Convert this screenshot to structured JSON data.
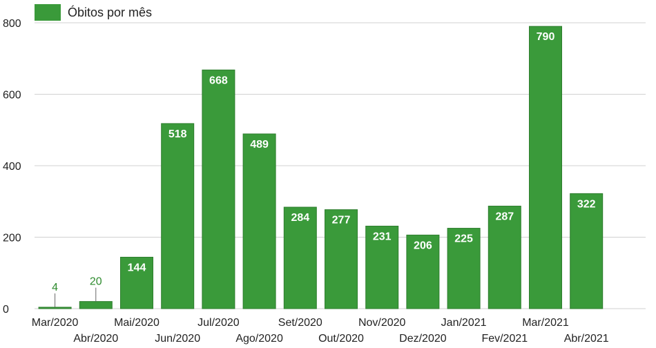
{
  "chart_data": {
    "type": "bar",
    "legend": {
      "label": "Óbitos por mês",
      "position": "top-left"
    },
    "categories": [
      "Mar/2020",
      "Abr/2020",
      "Mai/2020",
      "Jun/2020",
      "Jul/2020",
      "Ago/2020",
      "Set/2020",
      "Out/2020",
      "Nov/2020",
      "Dez/2020",
      "Jan/2021",
      "Fev/2021",
      "Mar/2021",
      "Abr/2021"
    ],
    "series": [
      {
        "name": "Óbitos por mês",
        "values": [
          4,
          20,
          144,
          518,
          668,
          489,
          284,
          277,
          231,
          206,
          225,
          287,
          790,
          322
        ]
      }
    ],
    "ylim": [
      0,
      800
    ],
    "yticks": [
      "0",
      "200",
      "400",
      "600",
      "800"
    ],
    "grid": true,
    "colors": {
      "bar": "#3a9a3a",
      "bar_stroke": "#2e7d2e",
      "outside_label": "#2e8b2e"
    }
  }
}
